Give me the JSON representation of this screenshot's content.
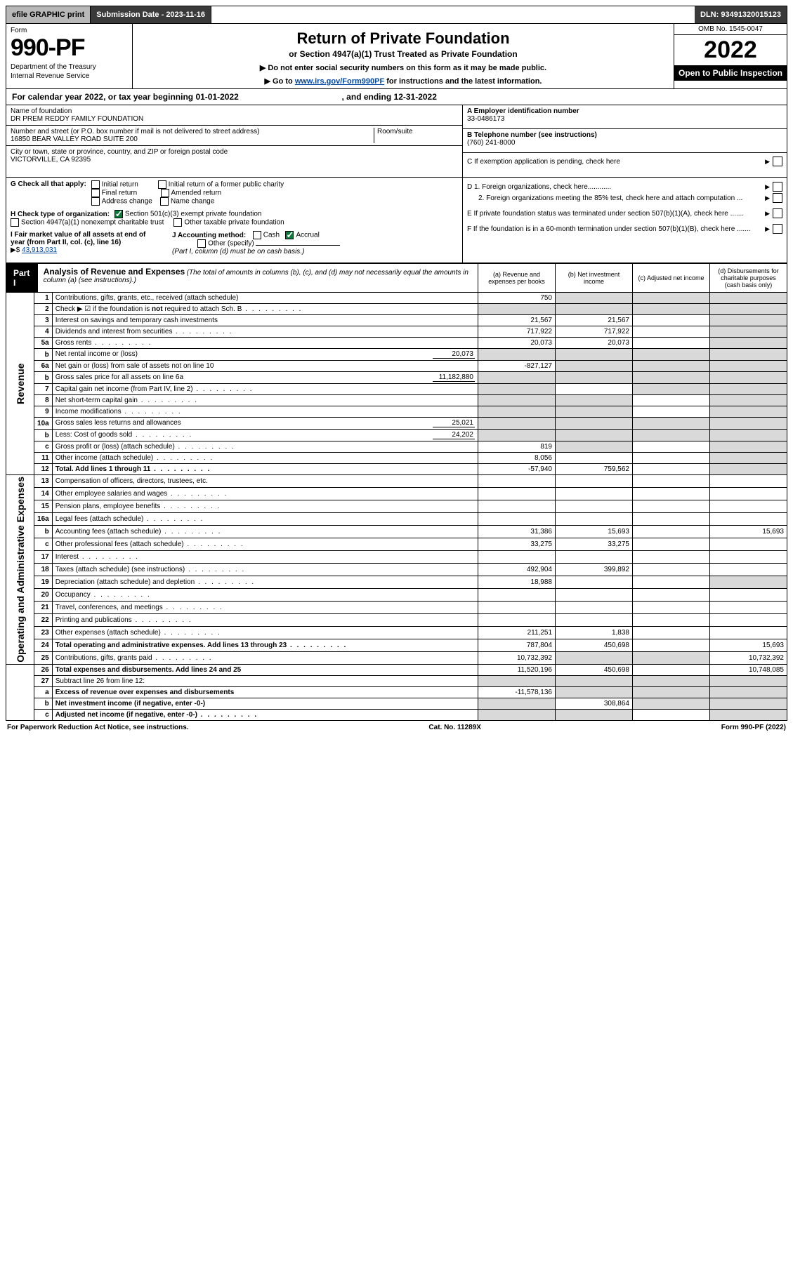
{
  "topbar": {
    "efile": "efile GRAPHIC print",
    "subdate": "Submission Date - 2023-11-16",
    "dln": "DLN: 93491320015123"
  },
  "formhead": {
    "form": "Form",
    "number": "990-PF",
    "dept1": "Department of the Treasury",
    "dept2": "Internal Revenue Service",
    "title": "Return of Private Foundation",
    "subtitle": "or Section 4947(a)(1) Trust Treated as Private Foundation",
    "note1": "▶ Do not enter social security numbers on this form as it may be made public.",
    "note2_pre": "▶ Go to ",
    "note2_link": "www.irs.gov/Form990PF",
    "note2_post": " for instructions and the latest information.",
    "omb": "OMB No. 1545-0047",
    "year": "2022",
    "open": "Open to Public Inspection"
  },
  "cal": {
    "text": "For calendar year 2022, or tax year beginning 01-01-2022",
    "ending": ", and ending 12-31-2022"
  },
  "info": {
    "name_label": "Name of foundation",
    "name": "DR PREM REDDY FAMILY FOUNDATION",
    "addr_label": "Number and street (or P.O. box number if mail is not delivered to street address)",
    "addr": "16850 BEAR VALLEY ROAD SUITE 200",
    "room_label": "Room/suite",
    "city_label": "City or town, state or province, country, and ZIP or foreign postal code",
    "city": "VICTORVILLE, CA  92395",
    "a_label": "A Employer identification number",
    "a_val": "33-0486173",
    "b_label": "B Telephone number (see instructions)",
    "b_val": "(760) 241-8000",
    "c_label": "C If exemption application is pending, check here",
    "d1": "D 1. Foreign organizations, check here............",
    "d2": "2. Foreign organizations meeting the 85% test, check here and attach computation ...",
    "e_label": "E  If private foundation status was terminated under section 507(b)(1)(A), check here .......",
    "f_label": "F  If the foundation is in a 60-month termination under section 507(b)(1)(B), check here .......",
    "g_label": "G Check all that apply:",
    "g_opts": [
      "Initial return",
      "Final return",
      "Address change",
      "Initial return of a former public charity",
      "Amended return",
      "Name change"
    ],
    "h_label": "H Check type of organization:",
    "h1": "Section 501(c)(3) exempt private foundation",
    "h2": "Section 4947(a)(1) nonexempt charitable trust",
    "h3": "Other taxable private foundation",
    "i_label": "I Fair market value of all assets at end of year (from Part II, col. (c), line 16)",
    "i_val": "43,913,031",
    "i_prefix": "▶$ ",
    "j_label": "J Accounting method:",
    "j_cash": "Cash",
    "j_accr": "Accrual",
    "j_other": "Other (specify)",
    "j_note": "(Part I, column (d) must be on cash basis.)"
  },
  "part1": {
    "label": "Part I",
    "title": "Analysis of Revenue and Expenses",
    "subtitle": "(The total of amounts in columns (b), (c), and (d) may not necessarily equal the amounts in column (a) (see instructions).)",
    "col_a": "(a)  Revenue and expenses per books",
    "col_b": "(b)  Net investment income",
    "col_c": "(c)  Adjusted net income",
    "col_d": "(d)  Disbursements for charitable purposes (cash basis only)"
  },
  "sidelabels": {
    "rev": "Revenue",
    "exp": "Operating and Administrative Expenses"
  },
  "rows": [
    {
      "n": "1",
      "d": "Contributions, gifts, grants, etc., received (attach schedule)",
      "a": "750",
      "b": "",
      "c": "",
      "dd": "",
      "shade_b": true,
      "shade_c": true,
      "shade_d": true
    },
    {
      "n": "2",
      "d": "Check ▶ ☑ if the foundation is not required to attach Sch. B",
      "a": "",
      "b": "",
      "c": "",
      "dd": "",
      "shade_a": true,
      "shade_b": true,
      "shade_c": true,
      "shade_d": true,
      "dots": true,
      "bold_not": true
    },
    {
      "n": "3",
      "d": "Interest on savings and temporary cash investments",
      "a": "21,567",
      "b": "21,567",
      "c": "",
      "dd": "",
      "shade_d": true
    },
    {
      "n": "4",
      "d": "Dividends and interest from securities",
      "a": "717,922",
      "b": "717,922",
      "c": "",
      "dd": "",
      "dots": true,
      "shade_d": true
    },
    {
      "n": "5a",
      "d": "Gross rents",
      "a": "20,073",
      "b": "20,073",
      "c": "",
      "dd": "",
      "dots": true,
      "shade_d": true
    },
    {
      "n": "b",
      "d": "Net rental income or (loss)",
      "inline": "20,073",
      "a": "",
      "b": "",
      "c": "",
      "dd": "",
      "shade_a": true,
      "shade_b": true,
      "shade_c": true,
      "shade_d": true
    },
    {
      "n": "6a",
      "d": "Net gain or (loss) from sale of assets not on line 10",
      "a": "-827,127",
      "b": "",
      "c": "",
      "dd": "",
      "shade_b": true,
      "shade_c": true,
      "shade_d": true
    },
    {
      "n": "b",
      "d": "Gross sales price for all assets on line 6a",
      "inline": "11,182,880",
      "a": "",
      "b": "",
      "c": "",
      "dd": "",
      "shade_a": true,
      "shade_b": true,
      "shade_c": true,
      "shade_d": true
    },
    {
      "n": "7",
      "d": "Capital gain net income (from Part IV, line 2)",
      "a": "",
      "b": "",
      "c": "",
      "dd": "",
      "dots": true,
      "shade_a": true,
      "shade_c": true,
      "shade_d": true
    },
    {
      "n": "8",
      "d": "Net short-term capital gain",
      "a": "",
      "b": "",
      "c": "",
      "dd": "",
      "dots": true,
      "shade_a": true,
      "shade_b": true,
      "shade_d": true
    },
    {
      "n": "9",
      "d": "Income modifications",
      "a": "",
      "b": "",
      "c": "",
      "dd": "",
      "dots": true,
      "shade_a": true,
      "shade_b": true,
      "shade_d": true
    },
    {
      "n": "10a",
      "d": "Gross sales less returns and allowances",
      "inline": "25,021",
      "a": "",
      "b": "",
      "c": "",
      "dd": "",
      "shade_a": true,
      "shade_b": true,
      "shade_c": true,
      "shade_d": true
    },
    {
      "n": "b",
      "d": "Less: Cost of goods sold",
      "inline": "24,202",
      "a": "",
      "b": "",
      "c": "",
      "dd": "",
      "dots": true,
      "shade_a": true,
      "shade_b": true,
      "shade_c": true,
      "shade_d": true
    },
    {
      "n": "c",
      "d": "Gross profit or (loss) (attach schedule)",
      "a": "819",
      "b": "",
      "c": "",
      "dd": "",
      "dots": true,
      "shade_b": true,
      "shade_d": true
    },
    {
      "n": "11",
      "d": "Other income (attach schedule)",
      "a": "8,056",
      "b": "",
      "c": "",
      "dd": "",
      "dots": true,
      "shade_d": true
    },
    {
      "n": "12",
      "d": "Total. Add lines 1 through 11",
      "a": "-57,940",
      "b": "759,562",
      "c": "",
      "dd": "",
      "dots": true,
      "bold": true,
      "shade_d": true
    },
    {
      "n": "13",
      "d": "Compensation of officers, directors, trustees, etc.",
      "a": "",
      "b": "",
      "c": "",
      "dd": ""
    },
    {
      "n": "14",
      "d": "Other employee salaries and wages",
      "a": "",
      "b": "",
      "c": "",
      "dd": "",
      "dots": true
    },
    {
      "n": "15",
      "d": "Pension plans, employee benefits",
      "a": "",
      "b": "",
      "c": "",
      "dd": "",
      "dots": true
    },
    {
      "n": "16a",
      "d": "Legal fees (attach schedule)",
      "a": "",
      "b": "",
      "c": "",
      "dd": "",
      "dots": true
    },
    {
      "n": "b",
      "d": "Accounting fees (attach schedule)",
      "a": "31,386",
      "b": "15,693",
      "c": "",
      "dd": "15,693",
      "dots": true
    },
    {
      "n": "c",
      "d": "Other professional fees (attach schedule)",
      "a": "33,275",
      "b": "33,275",
      "c": "",
      "dd": "",
      "dots": true
    },
    {
      "n": "17",
      "d": "Interest",
      "a": "",
      "b": "",
      "c": "",
      "dd": "",
      "dots": true
    },
    {
      "n": "18",
      "d": "Taxes (attach schedule) (see instructions)",
      "a": "492,904",
      "b": "399,892",
      "c": "",
      "dd": "",
      "dots": true
    },
    {
      "n": "19",
      "d": "Depreciation (attach schedule) and depletion",
      "a": "18,988",
      "b": "",
      "c": "",
      "dd": "",
      "dots": true,
      "shade_d": true
    },
    {
      "n": "20",
      "d": "Occupancy",
      "a": "",
      "b": "",
      "c": "",
      "dd": "",
      "dots": true
    },
    {
      "n": "21",
      "d": "Travel, conferences, and meetings",
      "a": "",
      "b": "",
      "c": "",
      "dd": "",
      "dots": true
    },
    {
      "n": "22",
      "d": "Printing and publications",
      "a": "",
      "b": "",
      "c": "",
      "dd": "",
      "dots": true
    },
    {
      "n": "23",
      "d": "Other expenses (attach schedule)",
      "a": "211,251",
      "b": "1,838",
      "c": "",
      "dd": "",
      "dots": true
    },
    {
      "n": "24",
      "d": "Total operating and administrative expenses. Add lines 13 through 23",
      "a": "787,804",
      "b": "450,698",
      "c": "",
      "dd": "15,693",
      "dots": true,
      "bold": true
    },
    {
      "n": "25",
      "d": "Contributions, gifts, grants paid",
      "a": "10,732,392",
      "b": "",
      "c": "",
      "dd": "10,732,392",
      "dots": true,
      "shade_b": true,
      "shade_c": true
    },
    {
      "n": "26",
      "d": "Total expenses and disbursements. Add lines 24 and 25",
      "a": "11,520,196",
      "b": "450,698",
      "c": "",
      "dd": "10,748,085",
      "bold": true
    },
    {
      "n": "27",
      "d": "Subtract line 26 from line 12:",
      "a": "",
      "b": "",
      "c": "",
      "dd": "",
      "shade_a": true,
      "shade_b": true,
      "shade_c": true,
      "shade_d": true
    },
    {
      "n": "a",
      "d": "Excess of revenue over expenses and disbursements",
      "a": "-11,578,136",
      "b": "",
      "c": "",
      "dd": "",
      "bold": true,
      "shade_b": true,
      "shade_c": true,
      "shade_d": true
    },
    {
      "n": "b",
      "d": "Net investment income (if negative, enter -0-)",
      "a": "",
      "b": "308,864",
      "c": "",
      "dd": "",
      "bold": true,
      "shade_a": true,
      "shade_c": true,
      "shade_d": true
    },
    {
      "n": "c",
      "d": "Adjusted net income (if negative, enter -0-)",
      "a": "",
      "b": "",
      "c": "",
      "dd": "",
      "bold": true,
      "dots": true,
      "shade_a": true,
      "shade_b": true,
      "shade_d": true
    }
  ],
  "footer": {
    "left": "For Paperwork Reduction Act Notice, see instructions.",
    "mid": "Cat. No. 11289X",
    "right": "Form 990-PF (2022)"
  }
}
